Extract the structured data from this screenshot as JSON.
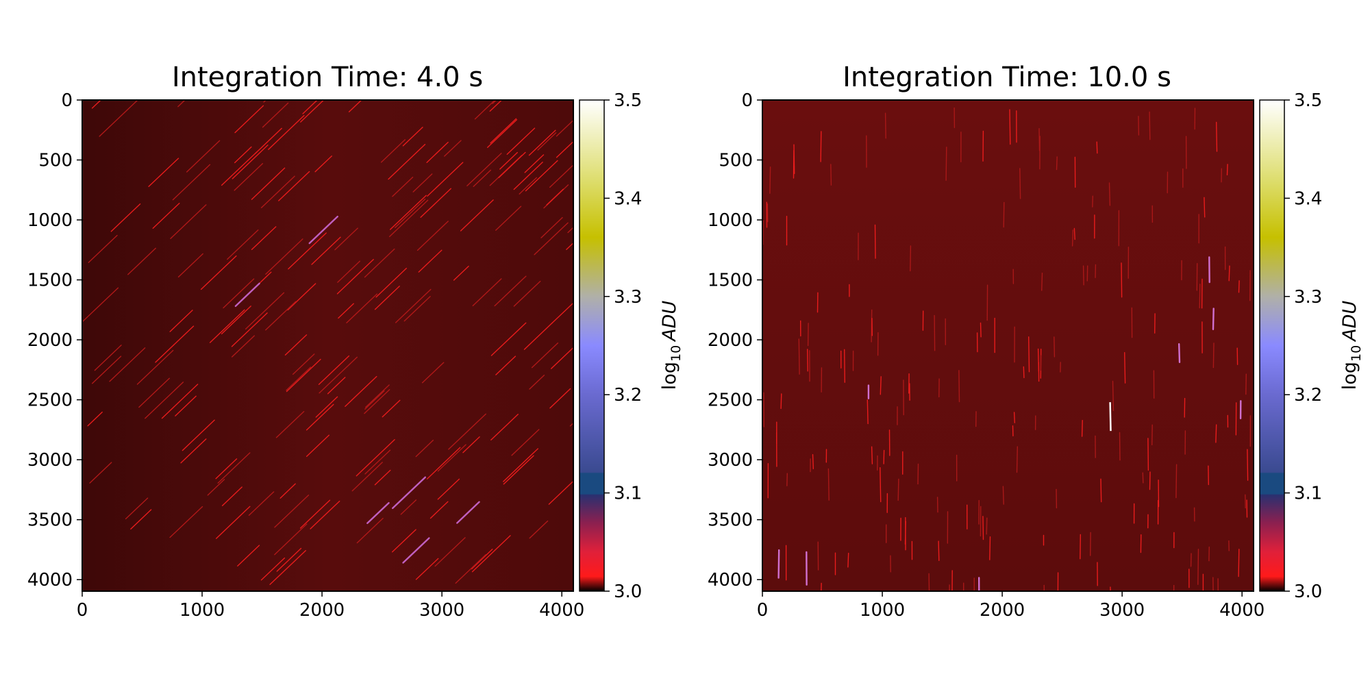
{
  "chart_data": [
    {
      "type": "heatmap",
      "title": "Integration Time: 4.0 s",
      "x_ticks": [
        0,
        1000,
        2000,
        3000,
        4000
      ],
      "y_ticks": [
        0,
        500,
        1000,
        1500,
        2000,
        2500,
        3000,
        3500,
        4000
      ],
      "xlim": [
        0,
        4096
      ],
      "ylim": [
        4096,
        0
      ],
      "streak_direction": "diagonal",
      "colorbar": {
        "label_main": "log",
        "label_sub": "10",
        "label_var": "ADU",
        "range": [
          3.0,
          3.5
        ],
        "ticks": [
          3.0,
          3.1,
          3.2,
          3.3,
          3.4,
          3.5
        ],
        "tick_labels": [
          "3.0",
          "3.1",
          "3.2",
          "3.3",
          "3.4",
          "3.5"
        ]
      }
    },
    {
      "type": "heatmap",
      "title": "Integration Time: 10.0 s",
      "x_ticks": [
        0,
        1000,
        2000,
        3000,
        4000
      ],
      "y_ticks": [
        0,
        500,
        1000,
        1500,
        2000,
        2500,
        3000,
        3500,
        4000
      ],
      "xlim": [
        0,
        4096
      ],
      "ylim": [
        4096,
        0
      ],
      "streak_direction": "vertical",
      "colorbar": {
        "label_main": "log",
        "label_sub": "10",
        "label_var": "ADU",
        "range": [
          3.0,
          3.5
        ],
        "ticks": [
          3.0,
          3.1,
          3.2,
          3.3,
          3.4,
          3.5
        ],
        "tick_labels": [
          "3.0",
          "3.1",
          "3.2",
          "3.3",
          "3.4",
          "3.5"
        ]
      }
    }
  ],
  "colormap": {
    "name": "gist_stern-like",
    "stops": [
      {
        "value": 3.0,
        "color": "#000000"
      },
      {
        "value": 3.015,
        "color": "#ff1a1a"
      },
      {
        "value": 3.04,
        "color": "#e0203a"
      },
      {
        "value": 3.07,
        "color": "#8a2050"
      },
      {
        "value": 3.098,
        "color": "#2a3070"
      },
      {
        "value": 3.099,
        "color": "#1a4a80"
      },
      {
        "value": 3.12,
        "color": "#1a4a80"
      },
      {
        "value": 3.121,
        "color": "#3a4a90"
      },
      {
        "value": 3.2,
        "color": "#6a6ad0"
      },
      {
        "value": 3.25,
        "color": "#8a8aff"
      },
      {
        "value": 3.3,
        "color": "#b0b0a8"
      },
      {
        "value": 3.36,
        "color": "#c6c000"
      },
      {
        "value": 3.42,
        "color": "#dede70"
      },
      {
        "value": 3.5,
        "color": "#ffffff"
      }
    ],
    "background": "#5a0c0c",
    "streak": "#e81c1c"
  }
}
